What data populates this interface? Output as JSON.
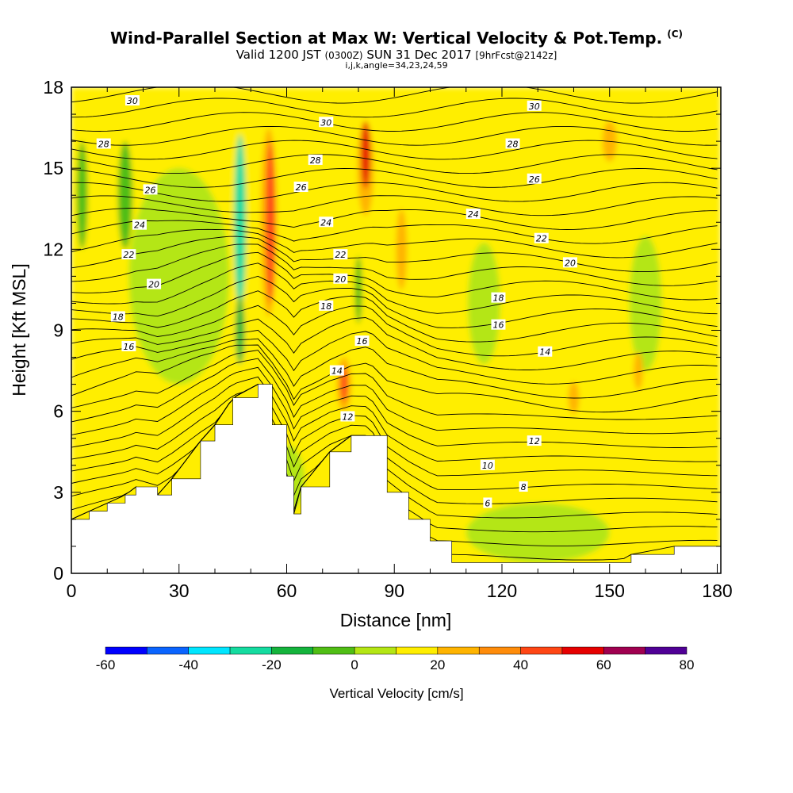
{
  "title": {
    "main": "Wind-Parallel Section at Max W: Vertical Velocity & Pot.Temp.",
    "units_tag": "(C)",
    "valid_prefix": "Valid 1200 JST",
    "valid_z": "(0300Z)",
    "valid_date": "SUN 31 Dec 2017",
    "forecast": "[9hrFcst@2142z]",
    "params": "i,j,k,angle=34,23,24,59"
  },
  "colors": {
    "palette": [
      "#0000ff",
      "#0a64ff",
      "#00e6ff",
      "#14dca0",
      "#14b43c",
      "#50be14",
      "#b4e614",
      "#ffee00",
      "#ffb400",
      "#ff8c0a",
      "#ff4614",
      "#e60000",
      "#a00050",
      "#500096"
    ],
    "terrain": "#ffffff",
    "contour": "#000000"
  },
  "chart_data": {
    "type": "heatmap",
    "xlabel": "Distance [nm]",
    "ylabel": "Height [Kft MSL]",
    "xlim": [
      0,
      181
    ],
    "ylim": [
      0,
      18
    ],
    "xticks": [
      0,
      30,
      60,
      90,
      120,
      150,
      180
    ],
    "yticks": [
      0,
      3,
      6,
      9,
      12,
      15,
      18
    ],
    "colorbar": {
      "label": "Vertical Velocity [cm/s]",
      "levels": [
        -70,
        -60,
        -50,
        -40,
        -30,
        -20,
        -10,
        0,
        10,
        20,
        30,
        40,
        50,
        60,
        70,
        80
      ],
      "tick_labels": [
        -60,
        -40,
        -20,
        0,
        20,
        40,
        60,
        80
      ]
    },
    "velocity_features": [
      {
        "x": 47,
        "y": 13,
        "value": -35,
        "description": "downdraft core"
      },
      {
        "x": 57,
        "y": 13,
        "value": 45
      },
      {
        "x": 82,
        "y": 15,
        "value": 45
      },
      {
        "x": 76,
        "y": 7,
        "value": 30
      },
      {
        "x": 115,
        "y": 10,
        "value": -10
      },
      {
        "x": 160,
        "y": 10,
        "value": -10
      },
      {
        "x": 140,
        "y": 6.5,
        "value": 15
      },
      {
        "x": 158,
        "y": 7.5,
        "value": 15
      },
      {
        "x": 3,
        "y": 14,
        "value": -15
      }
    ],
    "terrain_height_kft": [
      [
        0,
        2.0
      ],
      [
        5,
        2.3
      ],
      [
        10,
        2.6
      ],
      [
        15,
        2.9
      ],
      [
        18,
        3.2
      ],
      [
        24,
        2.9
      ],
      [
        28,
        3.5
      ],
      [
        36,
        4.9
      ],
      [
        40,
        5.5
      ],
      [
        45,
        6.5
      ],
      [
        52,
        7.0
      ],
      [
        56,
        5.5
      ],
      [
        60,
        3.6
      ],
      [
        62,
        2.2
      ],
      [
        64,
        3.2
      ],
      [
        72,
        4.5
      ],
      [
        78,
        5.1
      ],
      [
        83,
        5.1
      ],
      [
        88,
        3.0
      ],
      [
        94,
        2.0
      ],
      [
        100,
        1.2
      ],
      [
        106,
        0.4
      ],
      [
        152,
        0.4
      ],
      [
        156,
        0.7
      ],
      [
        168,
        1.0
      ],
      [
        180,
        1.0
      ]
    ],
    "potential_temperature_contour_labels": [
      {
        "x": 17,
        "y": 17.5,
        "text": "30"
      },
      {
        "x": 71,
        "y": 16.7,
        "text": "30"
      },
      {
        "x": 129,
        "y": 17.3,
        "text": "30"
      },
      {
        "x": 9,
        "y": 15.9,
        "text": "28"
      },
      {
        "x": 68,
        "y": 15.3,
        "text": "28"
      },
      {
        "x": 123,
        "y": 15.9,
        "text": "28"
      },
      {
        "x": 22,
        "y": 14.2,
        "text": "26"
      },
      {
        "x": 64,
        "y": 14.3,
        "text": "26"
      },
      {
        "x": 129,
        "y": 14.6,
        "text": "26"
      },
      {
        "x": 19,
        "y": 12.9,
        "text": "24"
      },
      {
        "x": 71,
        "y": 13.0,
        "text": "24"
      },
      {
        "x": 112,
        "y": 13.3,
        "text": "24"
      },
      {
        "x": 16,
        "y": 11.8,
        "text": "22"
      },
      {
        "x": 75,
        "y": 11.8,
        "text": "22"
      },
      {
        "x": 131,
        "y": 12.4,
        "text": "22"
      },
      {
        "x": 23,
        "y": 10.7,
        "text": "20"
      },
      {
        "x": 75,
        "y": 10.9,
        "text": "20"
      },
      {
        "x": 139,
        "y": 11.5,
        "text": "20"
      },
      {
        "x": 13,
        "y": 9.5,
        "text": "18"
      },
      {
        "x": 71,
        "y": 9.9,
        "text": "18"
      },
      {
        "x": 119,
        "y": 10.2,
        "text": "18"
      },
      {
        "x": 16,
        "y": 8.4,
        "text": "16"
      },
      {
        "x": 81,
        "y": 8.6,
        "text": "16"
      },
      {
        "x": 119,
        "y": 9.2,
        "text": "16"
      },
      {
        "x": 74,
        "y": 7.5,
        "text": "14"
      },
      {
        "x": 132,
        "y": 8.2,
        "text": "14"
      },
      {
        "x": 77,
        "y": 5.8,
        "text": "12"
      },
      {
        "x": 129,
        "y": 4.9,
        "text": "12"
      },
      {
        "x": 116,
        "y": 4.0,
        "text": "10"
      },
      {
        "x": 126,
        "y": 3.2,
        "text": "8"
      },
      {
        "x": 116,
        "y": 2.6,
        "text": "6"
      }
    ]
  }
}
